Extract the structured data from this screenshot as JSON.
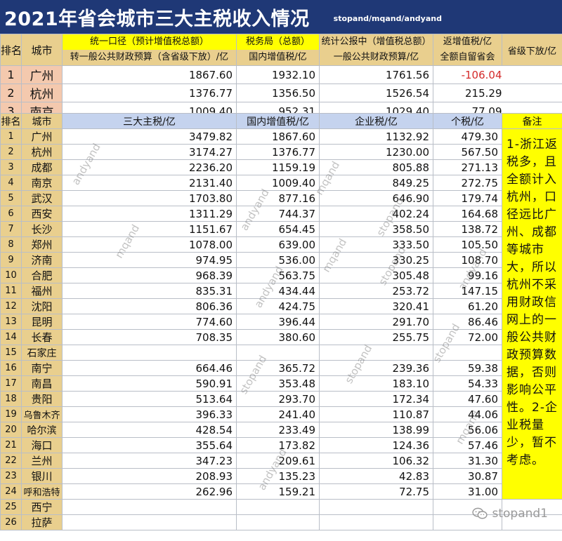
{
  "title": "2021年省会城市三大主税收入情况",
  "source_tag": "stopand/mqand/andyand",
  "top_header": {
    "rank": "排名",
    "city": "城市",
    "col1_line1": "统一口径（预计增值税总额）",
    "col1_line2": "转一般公共财政预算（含省级下放）/亿",
    "col2_line1": "税务局（总额）",
    "col2_line2": "国内增值税/亿",
    "col3_line1": "统计公报中（增值税总额）",
    "col3_line2": "一般公共财政预算/亿",
    "col4_line1": "返增值税/亿",
    "col4_line2": "全额自留省会",
    "col5": "省级下放/亿"
  },
  "top_rows": [
    {
      "rank": "1",
      "city": "广州",
      "v1": "1867.60",
      "v2": "1932.10",
      "v3": "1761.56",
      "v4": "-106.04"
    },
    {
      "rank": "2",
      "city": "杭州",
      "v1": "1376.77",
      "v2": "1356.50",
      "v3": "1526.54",
      "v4": "215.29"
    },
    {
      "rank": "3",
      "city": "南京",
      "v1": "1009.40",
      "v2": "952.31",
      "v3": "1029.40",
      "v4": "77.09"
    }
  ],
  "main_header": {
    "rank": "排名",
    "city": "城市",
    "total": "三大主税/亿",
    "vat": "国内增值税/亿",
    "corp": "企业税/亿",
    "pit": "个税/亿",
    "note": "备注"
  },
  "rows": [
    {
      "rank": "1",
      "city": "广州",
      "total": "3479.82",
      "vat": "1867.60",
      "corp": "1132.92",
      "pit": "479.30"
    },
    {
      "rank": "2",
      "city": "杭州",
      "total": "3174.27",
      "vat": "1376.77",
      "corp": "1230.00",
      "pit": "567.50"
    },
    {
      "rank": "3",
      "city": "成都",
      "total": "2236.20",
      "vat": "1159.19",
      "corp": "805.88",
      "pit": "271.13"
    },
    {
      "rank": "4",
      "city": "南京",
      "total": "2131.40",
      "vat": "1009.40",
      "corp": "849.25",
      "pit": "272.75"
    },
    {
      "rank": "5",
      "city": "武汉",
      "total": "1703.80",
      "vat": "877.16",
      "corp": "646.90",
      "pit": "179.74"
    },
    {
      "rank": "6",
      "city": "西安",
      "total": "1311.29",
      "vat": "744.37",
      "corp": "402.24",
      "pit": "164.68"
    },
    {
      "rank": "7",
      "city": "长沙",
      "total": "1151.67",
      "vat": "654.45",
      "corp": "358.50",
      "pit": "138.72"
    },
    {
      "rank": "8",
      "city": "郑州",
      "total": "1078.00",
      "vat": "639.00",
      "corp": "333.50",
      "pit": "105.50"
    },
    {
      "rank": "9",
      "city": "济南",
      "total": "974.95",
      "vat": "536.00",
      "corp": "330.25",
      "pit": "108.70"
    },
    {
      "rank": "10",
      "city": "合肥",
      "total": "968.39",
      "vat": "563.75",
      "corp": "305.48",
      "pit": "99.16"
    },
    {
      "rank": "11",
      "city": "福州",
      "total": "835.31",
      "vat": "434.44",
      "corp": "253.72",
      "pit": "147.15"
    },
    {
      "rank": "12",
      "city": "沈阳",
      "total": "806.36",
      "vat": "424.75",
      "corp": "320.41",
      "pit": "61.20"
    },
    {
      "rank": "13",
      "city": "昆明",
      "total": "774.60",
      "vat": "396.44",
      "corp": "291.70",
      "pit": "86.46"
    },
    {
      "rank": "14",
      "city": "长春",
      "total": "708.35",
      "vat": "380.60",
      "corp": "255.75",
      "pit": "72.00"
    },
    {
      "rank": "15",
      "city": "石家庄",
      "total": "",
      "vat": "",
      "corp": "",
      "pit": ""
    },
    {
      "rank": "16",
      "city": "南宁",
      "total": "664.46",
      "vat": "365.72",
      "corp": "239.36",
      "pit": "59.38"
    },
    {
      "rank": "17",
      "city": "南昌",
      "total": "590.91",
      "vat": "353.48",
      "corp": "183.10",
      "pit": "54.33"
    },
    {
      "rank": "18",
      "city": "贵阳",
      "total": "513.64",
      "vat": "293.70",
      "corp": "172.34",
      "pit": "47.60"
    },
    {
      "rank": "19",
      "city": "乌鲁木齐",
      "total": "396.33",
      "vat": "241.40",
      "corp": "110.87",
      "pit": "44.06"
    },
    {
      "rank": "20",
      "city": "哈尔滨",
      "total": "428.54",
      "vat": "233.49",
      "corp": "138.99",
      "pit": "56.06"
    },
    {
      "rank": "21",
      "city": "海口",
      "total": "355.64",
      "vat": "173.82",
      "corp": "124.36",
      "pit": "57.46"
    },
    {
      "rank": "22",
      "city": "兰州",
      "total": "347.23",
      "vat": "209.61",
      "corp": "106.32",
      "pit": "31.30"
    },
    {
      "rank": "23",
      "city": "银川",
      "total": "208.93",
      "vat": "135.23",
      "corp": "42.83",
      "pit": "30.87"
    },
    {
      "rank": "24",
      "city": "呼和浩特",
      "total": "262.96",
      "vat": "159.21",
      "corp": "72.75",
      "pit": "31.00"
    },
    {
      "rank": "25",
      "city": "西宁",
      "total": "",
      "vat": "",
      "corp": "",
      "pit": ""
    },
    {
      "rank": "26",
      "city": "拉萨",
      "total": "",
      "vat": "",
      "corp": "",
      "pit": ""
    }
  ],
  "note_text": "1-浙江返税多，且全额计入杭州，口径远比广州、成都等城市大，所以杭州不采用财政信网上的一般公共财政预算数据，否则影响公平性。2-企业税量少，暂不考虑。",
  "watermarks": [
    "andyand",
    "mqand",
    "andyand",
    "mqand",
    "stopand",
    "andyand",
    "mqand",
    "andyand",
    "stopand",
    "stopand",
    "stopand",
    "mqand",
    "andyand",
    "stopand"
  ],
  "brand": {
    "icon": "wechat-icon",
    "text": "stopand1"
  },
  "colors": {
    "title_bg": "#1f3876",
    "header_gold": "#e9cf8e",
    "highlight_yellow": "#ffff00",
    "header_blue": "#d2ddf0",
    "rank_pink": "#f4c9ae",
    "negative_red": "#d42a2a"
  }
}
